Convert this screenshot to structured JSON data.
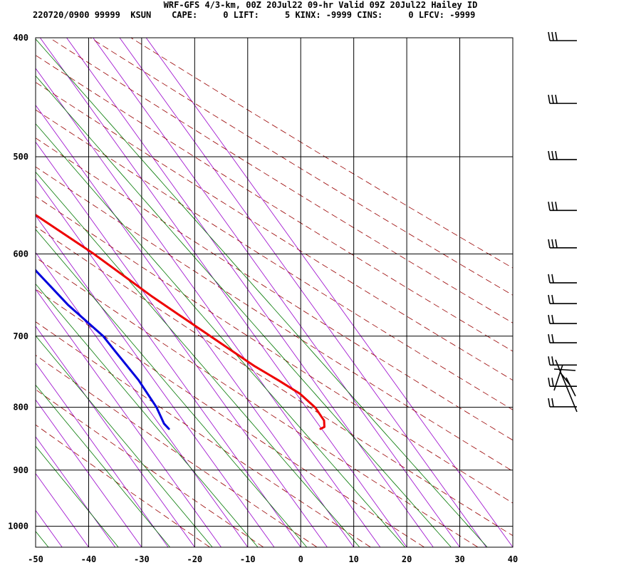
{
  "header": {
    "title": "WRF-GFS 4/3-km, 00Z 20Jul22 09-hr Valid 09Z 20Jul22 Hailey ID",
    "info": "220720/0900 99999  KSUN    CAPE:     0 LIFT:     5 KINX: -9999 CINS:     0 LFCV: -9999"
  },
  "chart_data": {
    "type": "line",
    "chart_kind": "skew-T log-P sounding",
    "xlim": [
      -50,
      40
    ],
    "ylim": [
      1040,
      400
    ],
    "y_scale": "log",
    "y_reversed": true,
    "skewed": true,
    "x_ticks": [
      "-50",
      "-40",
      "-30",
      "-20",
      "-10",
      "0",
      "10",
      "20",
      "30",
      "40"
    ],
    "y_ticks": [
      "400",
      "500",
      "600",
      "700",
      "800",
      "900",
      "1000"
    ],
    "grid": true,
    "series": [
      {
        "color": "#ee0000",
        "points": [
          [
            833,
            19.8
          ],
          [
            830,
            20.8
          ],
          [
            820,
            21.6
          ],
          [
            800,
            21.7
          ],
          [
            780,
            20.7
          ],
          [
            760,
            18.4
          ],
          [
            740,
            15.8
          ],
          [
            700,
            11.6
          ],
          [
            650,
            6.0
          ],
          [
            600,
            0.8
          ],
          [
            560,
            -4.6
          ],
          [
            530,
            -9.0
          ],
          [
            500,
            -13.6
          ],
          [
            460,
            -19.9
          ],
          [
            430,
            -25.2
          ],
          [
            400,
            -31.2
          ]
        ]
      },
      {
        "color": "#0000dd",
        "points": [
          [
            833,
            -8.8
          ],
          [
            825,
            -9.0
          ],
          [
            800,
            -8.2
          ],
          [
            760,
            -7.9
          ],
          [
            720,
            -8.4
          ],
          [
            700,
            -8.6
          ],
          [
            660,
            -11.0
          ],
          [
            620,
            -12.4
          ],
          [
            600,
            -12.7
          ],
          [
            570,
            -14.2
          ],
          [
            540,
            -18.0
          ],
          [
            500,
            -24.1
          ],
          [
            470,
            -32.0
          ],
          [
            430,
            -42.0
          ],
          [
            400,
            -53.9
          ]
        ]
      }
    ],
    "reference_lines": {
      "isotherms": {
        "color": "#9900cc"
      },
      "dry_adiabats": {
        "color": "#990000",
        "dashed": true
      },
      "mixing_ratio": {
        "color": "#007700"
      }
    },
    "wind_barbs": {
      "side": "right",
      "color": "#000000",
      "levels": [
        {
          "p": 400,
          "knots": 35,
          "barbs": 3
        },
        {
          "p": 450,
          "knots": 35,
          "barbs": 3
        },
        {
          "p": 500,
          "knots": 35,
          "barbs": 3
        },
        {
          "p": 550,
          "knots": 30,
          "barbs": 3
        },
        {
          "p": 590,
          "knots": 30,
          "barbs": 3
        },
        {
          "p": 630,
          "knots": 25,
          "barbs": 2
        },
        {
          "p": 655,
          "knots": 25,
          "barbs": 2
        },
        {
          "p": 680,
          "knots": 20,
          "barbs": 2
        },
        {
          "p": 705,
          "knots": 20,
          "barbs": 2
        },
        {
          "p": 735,
          "knots": 15,
          "barbs": 2
        },
        {
          "p": 765,
          "knots": 15,
          "barbs": 2
        },
        {
          "p": 795,
          "knots": 10,
          "barbs": 2
        }
      ]
    }
  }
}
